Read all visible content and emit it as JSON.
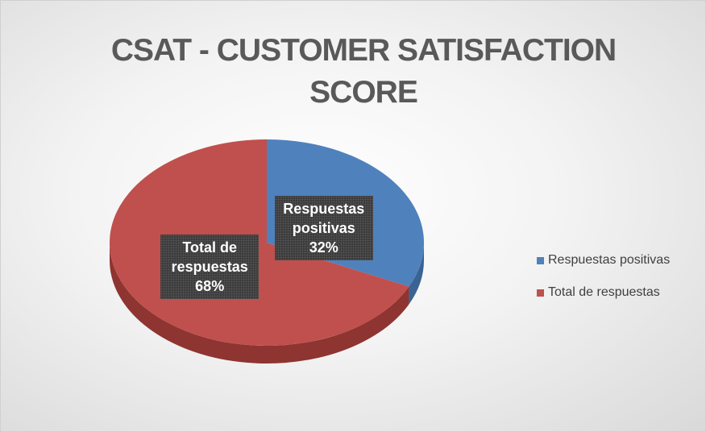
{
  "chart_data": {
    "type": "pie",
    "title": "CSAT - CUSTOMER SATISFACTION SCORE",
    "categories": [
      "Respuestas positivas",
      "Total de respuestas"
    ],
    "values": [
      32,
      68
    ],
    "value_labels": [
      "32%",
      "68%"
    ],
    "colors": [
      "#4f81bd",
      "#c0504d"
    ],
    "side_colors": [
      "#3a6393",
      "#8e3431"
    ],
    "legend": "right"
  }
}
